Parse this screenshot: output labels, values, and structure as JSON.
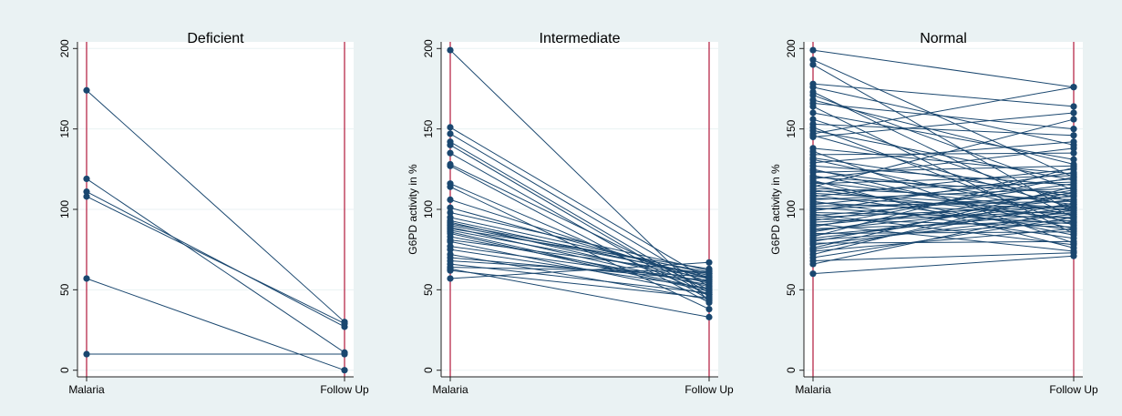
{
  "colors": {
    "background": "#eaf2f3",
    "plot_background": "#ffffff",
    "series": "#1a476f",
    "reference_line": "#b2183b",
    "grid": "#eaf2f3"
  },
  "chart_data": [
    {
      "type": "line",
      "title": "Deficient",
      "ylabel": "",
      "xlabel": "",
      "categories": [
        "Malaria",
        "Follow Up"
      ],
      "yticks": [
        "0",
        "50",
        "100",
        "150",
        "200"
      ],
      "ylim": [
        -3,
        203
      ],
      "grid": true,
      "pairs": [
        [
          174,
          30
        ],
        [
          119,
          11
        ],
        [
          111,
          27
        ],
        [
          108,
          29
        ],
        [
          57,
          0
        ],
        [
          10,
          10
        ]
      ]
    },
    {
      "type": "line",
      "title": "Intermediate",
      "ylabel": "G6PD activity in %",
      "xlabel": "",
      "categories": [
        "Malaria",
        "Follow Up"
      ],
      "yticks": [
        "0",
        "50",
        "100",
        "150",
        "200"
      ],
      "ylim": [
        -3,
        203
      ],
      "grid": true,
      "pairs": [
        [
          199,
          43
        ],
        [
          151,
          56
        ],
        [
          147,
          52
        ],
        [
          142,
          48
        ],
        [
          140,
          46
        ],
        [
          135,
          44
        ],
        [
          128,
          50
        ],
        [
          127,
          42
        ],
        [
          116,
          47
        ],
        [
          114,
          38
        ],
        [
          106,
          55
        ],
        [
          101,
          57
        ],
        [
          98,
          62
        ],
        [
          95,
          60
        ],
        [
          93,
          58
        ],
        [
          92,
          54
        ],
        [
          91,
          61
        ],
        [
          90,
          59
        ],
        [
          89,
          52
        ],
        [
          88,
          63
        ],
        [
          87,
          57
        ],
        [
          86,
          50
        ],
        [
          85,
          49
        ],
        [
          83,
          53
        ],
        [
          81,
          60
        ],
        [
          80,
          47
        ],
        [
          77,
          55
        ],
        [
          75,
          51
        ],
        [
          72,
          44
        ],
        [
          70,
          56
        ],
        [
          68,
          58
        ],
        [
          66,
          48
        ],
        [
          64,
          61
        ],
        [
          63,
          33
        ],
        [
          62,
          45
        ],
        [
          57,
          67
        ]
      ]
    },
    {
      "type": "line",
      "title": "Normal",
      "ylabel": "G6PD activity in %",
      "xlabel": "",
      "categories": [
        "Malaria",
        "Follow Up"
      ],
      "yticks": [
        "0",
        "50",
        "100",
        "150",
        "200"
      ],
      "ylim": [
        -3,
        203
      ],
      "grid": true,
      "pairs": [
        [
          199,
          176
        ],
        [
          193,
          120
        ],
        [
          190,
          98
        ],
        [
          178,
          164
        ],
        [
          176,
          140
        ],
        [
          173,
          95
        ],
        [
          171,
          112
        ],
        [
          168,
          128
        ],
        [
          166,
          150
        ],
        [
          164,
          85
        ],
        [
          160,
          131
        ],
        [
          156,
          104
        ],
        [
          153,
          146
        ],
        [
          151,
          90
        ],
        [
          149,
          118
        ],
        [
          147,
          176
        ],
        [
          146,
          101
        ],
        [
          145,
          160
        ],
        [
          138,
          122
        ],
        [
          136,
          79
        ],
        [
          134,
          135
        ],
        [
          132,
          108
        ],
        [
          131,
          96
        ],
        [
          129,
          142
        ],
        [
          127,
          115
        ],
        [
          125,
          88
        ],
        [
          124,
          103
        ],
        [
          123,
          127
        ],
        [
          121,
          92
        ],
        [
          120,
          110
        ],
        [
          119,
          138
        ],
        [
          118,
          76
        ],
        [
          117,
          99
        ],
        [
          116,
          121
        ],
        [
          115,
          84
        ],
        [
          114,
          156
        ],
        [
          113,
          106
        ],
        [
          112,
          94
        ],
        [
          111,
          117
        ],
        [
          110,
          101
        ],
        [
          109,
          87
        ],
        [
          108,
          125
        ],
        [
          107,
          100
        ],
        [
          106,
          113
        ],
        [
          105,
          82
        ],
        [
          104,
          97
        ],
        [
          103,
          119
        ],
        [
          102,
          105
        ],
        [
          101,
          91
        ],
        [
          100,
          108
        ],
        [
          99,
          123
        ],
        [
          98,
          95
        ],
        [
          97,
          78
        ],
        [
          96,
          110
        ],
        [
          95,
          102
        ],
        [
          94,
          89
        ],
        [
          93,
          116
        ],
        [
          92,
          99
        ],
        [
          91,
          74
        ],
        [
          90,
          106
        ],
        [
          89,
          120
        ],
        [
          88,
          93
        ],
        [
          87,
          103
        ],
        [
          86,
          112
        ],
        [
          85,
          86
        ],
        [
          84,
          98
        ],
        [
          83,
          126
        ],
        [
          82,
          101
        ],
        [
          81,
          92
        ],
        [
          80,
          109
        ],
        [
          79,
          80
        ],
        [
          78,
          97
        ],
        [
          76,
          114
        ],
        [
          75,
          104
        ],
        [
          74,
          88
        ],
        [
          72,
          111
        ],
        [
          70,
          95
        ],
        [
          68,
          73
        ],
        [
          66,
          100
        ],
        [
          60,
          71
        ]
      ]
    }
  ]
}
